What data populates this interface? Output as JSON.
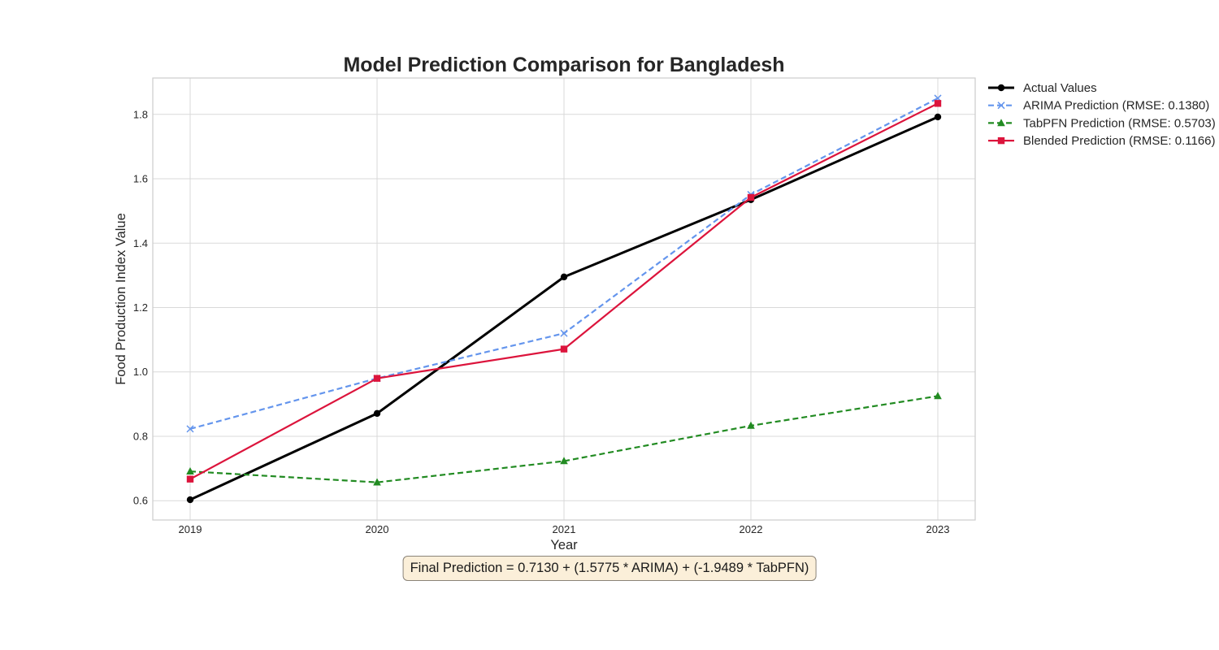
{
  "chart_data": {
    "type": "line",
    "title": "Model Prediction Comparison for Bangladesh",
    "xlabel": "Year",
    "ylabel": "Food Production Index Value",
    "x": [
      2019,
      2020,
      2021,
      2022,
      2023
    ],
    "xlim": [
      2018.8,
      2023.2
    ],
    "ylim": [
      0.54,
      1.913
    ],
    "yticks": [
      0.6,
      0.8,
      1.0,
      1.2,
      1.4,
      1.6,
      1.8
    ],
    "grid": true,
    "legend_position": "outside-top-right",
    "series": [
      {
        "name": "Actual Values",
        "values": [
          0.603,
          0.871,
          1.295,
          1.535,
          1.792
        ],
        "color": "#000000",
        "dash": "solid",
        "marker": "circle"
      },
      {
        "name": "ARIMA Prediction (RMSE: 0.1380)",
        "values": [
          0.823,
          0.98,
          1.12,
          1.551,
          1.85
        ],
        "color": "#6495ed",
        "dash": "dashed",
        "marker": "x"
      },
      {
        "name": "TabPFN Prediction (RMSE: 0.5703)",
        "values": [
          0.691,
          0.657,
          0.723,
          0.833,
          0.925
        ],
        "color": "#228b22",
        "dash": "dashed",
        "marker": "triangle"
      },
      {
        "name": "Blended Prediction (RMSE: 0.1166)",
        "values": [
          0.667,
          0.98,
          1.071,
          1.542,
          1.834
        ],
        "color": "#dc143c",
        "dash": "solid",
        "marker": "square"
      }
    ]
  },
  "annotation": {
    "text": "Final Prediction = 0.7130 + (1.5775 * ARIMA) + (-1.9489 * TabPFN)"
  }
}
